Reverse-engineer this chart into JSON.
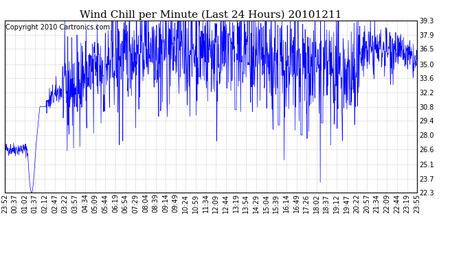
{
  "title": "Wind Chill per Minute (Last 24 Hours) 20101211",
  "copyright_text": "Copyright 2010 Cartronics.com",
  "line_color": "#0000FF",
  "bg_color": "#FFFFFF",
  "grid_color": "#AAAAAA",
  "yticks": [
    22.3,
    23.7,
    25.1,
    26.6,
    28.0,
    29.4,
    30.8,
    32.2,
    33.6,
    35.0,
    36.5,
    37.9,
    39.3
  ],
  "ylim": [
    22.3,
    39.3
  ],
  "xlabel_rotation": 90,
  "xtick_labels": [
    "23:52",
    "00:37",
    "01:02",
    "01:37",
    "02:12",
    "02:47",
    "03:22",
    "03:57",
    "04:34",
    "05:09",
    "05:44",
    "06:19",
    "06:54",
    "07:29",
    "08:04",
    "08:39",
    "09:14",
    "09:49",
    "10:24",
    "10:59",
    "11:34",
    "12:09",
    "12:44",
    "13:19",
    "13:54",
    "14:29",
    "15:04",
    "15:39",
    "16:14",
    "16:49",
    "17:26",
    "18:02",
    "18:37",
    "19:12",
    "19:47",
    "20:22",
    "20:57",
    "21:34",
    "22:09",
    "22:44",
    "23:19",
    "23:55"
  ],
  "title_fontsize": 11,
  "copyright_fontsize": 7,
  "tick_fontsize": 7,
  "figwidth": 6.9,
  "figheight": 3.75,
  "dpi": 100
}
